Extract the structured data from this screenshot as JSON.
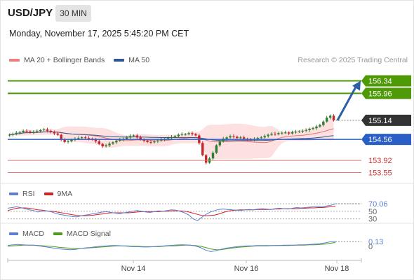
{
  "header": {
    "symbol": "USD/JPY",
    "timeframe": "30 MIN",
    "timestamp": "Monday, November 17, 2025 5:45:20 PM CET"
  },
  "legend": {
    "items": [
      {
        "label": "MA 20 + Bollinger Bands",
        "color": "#f08080"
      },
      {
        "label": "MA 50",
        "color": "#2f5597"
      }
    ],
    "credit": "Research © 2025 Trading Central"
  },
  "rsi_legend": [
    {
      "label": "RSI",
      "color": "#5b7fd6"
    },
    {
      "label": "9MA",
      "color": "#d62020"
    }
  ],
  "macd_legend": [
    {
      "label": "MACD",
      "color": "#5b7fd6"
    },
    {
      "label": "MACD Signal",
      "color": "#4d9a1c"
    }
  ],
  "colors": {
    "resistance": "#4e9a06",
    "pivot": "#2b5fc8",
    "support": "#e07a7a",
    "last": "#333333",
    "arrow": "#2b5fa8",
    "bull_candle": "#2e7d32",
    "bear_candle": "#c62828",
    "band_fill": "#fcd6d6"
  },
  "chart_data": {
    "type": "candlestick",
    "ylim": [
      153.37,
      156.67
    ],
    "x_ticks": [
      "Nov 14",
      "Nov 16",
      "Nov 18"
    ],
    "levels": {
      "resistances": [
        156.34,
        155.96
      ],
      "last": 155.14,
      "pivot": 154.56,
      "supports": [
        153.92,
        153.55
      ]
    },
    "target_arrow": {
      "from": 155.14,
      "to": 156.34
    },
    "candles": [
      154.7,
      154.72,
      154.76,
      154.78,
      154.82,
      154.8,
      154.77,
      154.79,
      154.81,
      154.84,
      154.86,
      154.82,
      154.78,
      154.74,
      154.7,
      154.55,
      154.48,
      154.5,
      154.55,
      154.58,
      154.6,
      154.62,
      154.6,
      154.58,
      154.56,
      154.5,
      154.42,
      154.35,
      154.38,
      154.43,
      154.47,
      154.52,
      154.55,
      154.58,
      154.62,
      154.66,
      154.68,
      154.62,
      154.56,
      154.52,
      154.48,
      154.47,
      154.5,
      154.53,
      154.55,
      154.58,
      154.6,
      154.63,
      154.66,
      154.7,
      154.72,
      154.72,
      154.75,
      154.72,
      154.68,
      154.45,
      154.08,
      153.85,
      153.98,
      154.15,
      154.38,
      154.5,
      154.58,
      154.62,
      154.66,
      154.64,
      154.6,
      154.62,
      154.58,
      154.56,
      154.55,
      154.57,
      154.6,
      154.62,
      154.66,
      154.7,
      154.73,
      154.72,
      154.75,
      154.76,
      154.77,
      154.74,
      154.78,
      154.79,
      154.8,
      154.82,
      154.84,
      154.88,
      154.9,
      154.95,
      155.0,
      155.1,
      155.22,
      155.28,
      155.14
    ],
    "rsi": {
      "levels": [
        70,
        50,
        30
      ],
      "last_value": 70.06,
      "ylim": [
        20,
        85
      ],
      "rsi_values": [
        58,
        60,
        62,
        60,
        57,
        54,
        52,
        48,
        50,
        51,
        49,
        45,
        42,
        40,
        38,
        36,
        35,
        38,
        40,
        42,
        44,
        46,
        48,
        49,
        47,
        45,
        44,
        46,
        48,
        50,
        52,
        50,
        48,
        47,
        49,
        51,
        50,
        52,
        54,
        53,
        50,
        46,
        40,
        30,
        25,
        34,
        42,
        48,
        52,
        55,
        56,
        55,
        54,
        53,
        52,
        54,
        55,
        54,
        56,
        57,
        56,
        55,
        57,
        58,
        57,
        56,
        58,
        60,
        59,
        60,
        61,
        62,
        63,
        62,
        64,
        66,
        70
      ],
      "ma_values": [
        52,
        55,
        58,
        59,
        59,
        58,
        56,
        54,
        53,
        51,
        50,
        49,
        47,
        45,
        43,
        41,
        39,
        38,
        38,
        39,
        40,
        42,
        43,
        45,
        46,
        46,
        46,
        46,
        46,
        47,
        48,
        49,
        49,
        49,
        49,
        49,
        50,
        50,
        51,
        51,
        51,
        50,
        48,
        45,
        42,
        39,
        38,
        39,
        40,
        43,
        47,
        50,
        52,
        53,
        54,
        54,
        54,
        54,
        55,
        55,
        55,
        55,
        56,
        56,
        57,
        57,
        57,
        57,
        58,
        58,
        59,
        59,
        60,
        60,
        61,
        62,
        63
      ]
    },
    "macd": {
      "last_value": 0.13,
      "zero_label": "0",
      "ylim": [
        -0.3,
        0.22
      ],
      "macd_values": [
        0.02,
        0.04,
        0.05,
        0.04,
        0.03,
        0.03,
        0.01,
        -0.01,
        -0.03,
        -0.05,
        -0.07,
        -0.08,
        -0.09,
        -0.08,
        -0.06,
        -0.04,
        -0.03,
        -0.01,
        0.0,
        0.01,
        0.02,
        0.02,
        0.01,
        0.0,
        -0.01,
        -0.01,
        -0.02,
        -0.02,
        -0.01,
        0.0,
        0.01,
        0.02,
        0.03,
        0.04,
        0.04,
        0.03,
        0.01,
        -0.03,
        -0.1,
        -0.14,
        -0.12,
        -0.08,
        -0.05,
        -0.03,
        -0.01,
        0.0,
        0.01,
        0.01,
        0.02,
        0.02,
        0.02,
        0.02,
        0.02,
        0.03,
        0.03,
        0.03,
        0.04,
        0.04,
        0.05,
        0.06,
        0.07,
        0.09,
        0.12,
        0.13
      ],
      "signal_values": [
        0.0,
        0.01,
        0.02,
        0.03,
        0.03,
        0.03,
        0.02,
        0.01,
        0.0,
        -0.01,
        -0.03,
        -0.04,
        -0.05,
        -0.06,
        -0.06,
        -0.05,
        -0.04,
        -0.03,
        -0.02,
        -0.01,
        0.0,
        0.01,
        0.01,
        0.01,
        0.0,
        0.0,
        -0.01,
        -0.01,
        -0.01,
        -0.01,
        0.0,
        0.01,
        0.01,
        0.02,
        0.03,
        0.03,
        0.02,
        0.0,
        -0.03,
        -0.07,
        -0.09,
        -0.09,
        -0.07,
        -0.05,
        -0.03,
        -0.02,
        -0.01,
        0.0,
        0.01,
        0.01,
        0.01,
        0.02,
        0.02,
        0.02,
        0.02,
        0.03,
        0.03,
        0.03,
        0.04,
        0.04,
        0.05,
        0.06,
        0.08,
        0.1
      ]
    }
  }
}
